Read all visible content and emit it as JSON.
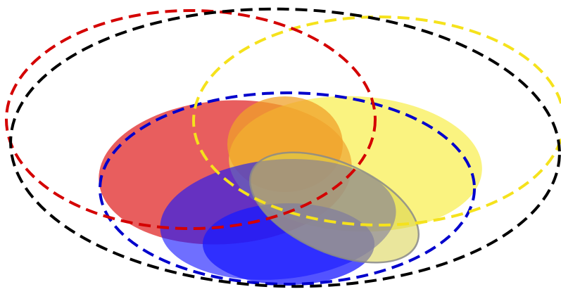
{
  "diagram": {
    "type": "overlapping-ellipses",
    "colors": {
      "black": "#000000",
      "red": "#d40000",
      "yellow": "#f2e21c",
      "blue": "#0000cc",
      "red_fill": "#e33a3a",
      "yellow_fill": "#f7ea45",
      "blue_fill": "#1212ff",
      "orange_fill": "#f0a22a",
      "gray_outline": "#888888"
    },
    "shapes": [
      {
        "name": "outer-black-dashed-ellipse",
        "style": "dashed-outline",
        "color": "black"
      },
      {
        "name": "red-dashed-ellipse",
        "style": "dashed-outline",
        "color": "red"
      },
      {
        "name": "yellow-dashed-ellipse",
        "style": "dashed-outline",
        "color": "yellow"
      },
      {
        "name": "blue-dashed-ellipse",
        "style": "dashed-outline",
        "color": "blue"
      },
      {
        "name": "red-filled-ellipse",
        "style": "filled",
        "color": "red_fill"
      },
      {
        "name": "yellow-filled-ellipse",
        "style": "filled",
        "color": "yellow_fill"
      },
      {
        "name": "orange-filled-ellipse",
        "style": "filled",
        "color": "orange_fill"
      },
      {
        "name": "blue-filled-ellipse",
        "style": "filled",
        "color": "blue_fill"
      },
      {
        "name": "lower-blue-filled-ellipse",
        "style": "filled",
        "color": "blue_fill"
      },
      {
        "name": "tilted-gray-outlined-ellipse",
        "style": "outline",
        "color": "gray_outline"
      }
    ]
  }
}
